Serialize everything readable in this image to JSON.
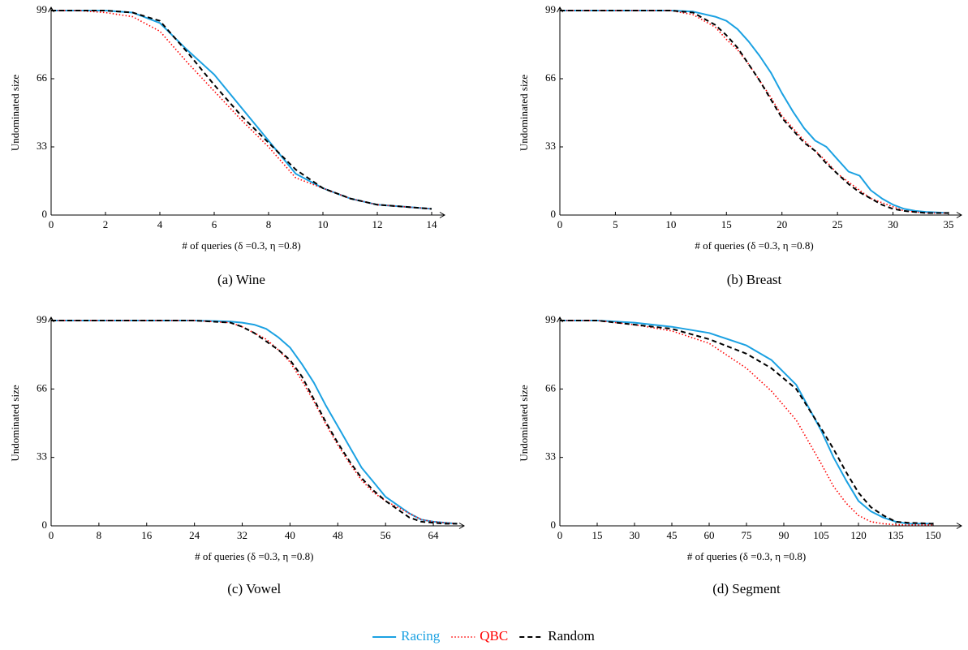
{
  "chart_data": [
    {
      "type": "line",
      "caption": "(a)  Wine",
      "x_label": "# of queries (δ =0.3, η =0.8)",
      "y_label": "Undominated size",
      "xlim": [
        0,
        14
      ],
      "ylim": [
        0,
        99
      ],
      "xticks": [
        0,
        2,
        4,
        6,
        8,
        10,
        12,
        14
      ],
      "yticks": [
        0,
        33,
        66,
        99
      ],
      "x": [
        0,
        1,
        2,
        3,
        4,
        5,
        6,
        7,
        8,
        9,
        10,
        11,
        12,
        13,
        14
      ],
      "series": [
        {
          "values": [
            99,
            99,
            99,
            98,
            93,
            80,
            68,
            52,
            36,
            20,
            13,
            8,
            5,
            4,
            3
          ]
        },
        {
          "values": [
            99,
            99,
            98,
            96,
            89,
            74,
            60,
            46,
            33,
            18,
            13,
            8,
            5,
            4,
            3
          ]
        },
        {
          "values": [
            99,
            99,
            99,
            98,
            94,
            79,
            63,
            48,
            35,
            22,
            13,
            8,
            5,
            4,
            3
          ]
        }
      ]
    },
    {
      "type": "line",
      "caption": "(b)  Breast",
      "x_label": "# of queries (δ =0.3, η =0.8)",
      "y_label": "Undominated size",
      "xlim": [
        0,
        35
      ],
      "ylim": [
        0,
        99
      ],
      "xticks": [
        0,
        5,
        10,
        15,
        20,
        25,
        30,
        35
      ],
      "yticks": [
        0,
        33,
        66,
        99
      ],
      "x": [
        0,
        5,
        10,
        12,
        14,
        15,
        16,
        17,
        18,
        19,
        20,
        21,
        22,
        23,
        24,
        25,
        26,
        27,
        28,
        29,
        30,
        31,
        32,
        33,
        35
      ],
      "series": [
        {
          "values": [
            99,
            99,
            99,
            98.5,
            96,
            94,
            90,
            84,
            77,
            69,
            59,
            50,
            42,
            36,
            33,
            27,
            21,
            19,
            12,
            8,
            5,
            3,
            2,
            1.5,
            1
          ]
        },
        {
          "values": [
            99,
            99,
            99,
            97,
            91,
            85,
            80,
            73,
            65,
            57,
            48,
            42,
            36,
            31,
            26,
            20,
            16,
            12,
            8,
            6,
            4,
            2,
            1.5,
            1,
            1
          ]
        },
        {
          "values": [
            99,
            99,
            99,
            98,
            92,
            87,
            81,
            73,
            65,
            56,
            47,
            41,
            35,
            31,
            25,
            20,
            15,
            11,
            8,
            5,
            3,
            2,
            1.5,
            1,
            1
          ]
        }
      ]
    },
    {
      "type": "line",
      "caption": "(c)  Vowel",
      "x_label": "# of queries (δ =0.3, η =0.8)",
      "y_label": "Undominated size",
      "xlim": [
        0,
        68
      ],
      "ylim": [
        0,
        99
      ],
      "xticks": [
        0,
        8,
        16,
        24,
        32,
        40,
        48,
        56,
        64
      ],
      "yticks": [
        0,
        33,
        66,
        99
      ],
      "x": [
        0,
        8,
        16,
        24,
        30,
        32,
        34,
        36,
        38,
        40,
        42,
        44,
        46,
        48,
        50,
        52,
        54,
        56,
        58,
        60,
        62,
        64,
        66,
        68
      ],
      "series": [
        {
          "values": [
            99,
            99,
            99,
            99,
            98.5,
            98,
            97,
            95,
            91,
            86,
            78,
            69,
            58,
            48,
            38,
            28,
            21,
            14,
            10,
            6,
            3,
            2,
            1.5,
            1
          ]
        },
        {
          "values": [
            99,
            99,
            99,
            99,
            98,
            96,
            93,
            90,
            85,
            79,
            70,
            60,
            49,
            39,
            30,
            22,
            16,
            12,
            9,
            6,
            3,
            2,
            1.5,
            1
          ]
        },
        {
          "values": [
            99,
            99,
            99,
            99,
            98,
            96,
            93,
            89,
            85,
            80,
            72,
            61,
            50,
            40,
            31,
            23,
            17,
            12,
            8,
            4,
            2,
            1.5,
            1,
            1
          ]
        }
      ]
    },
    {
      "type": "line",
      "caption": "(d)  Segment",
      "x_label": "# of queries (δ =0.3, η =0.8)",
      "y_label": "Undominated size",
      "xlim": [
        0,
        150
      ],
      "ylim": [
        0,
        99
      ],
      "xticks": [
        0,
        15,
        30,
        45,
        60,
        75,
        90,
        105,
        120,
        135,
        150
      ],
      "yticks": [
        0,
        33,
        66,
        99
      ],
      "x": [
        0,
        15,
        30,
        45,
        60,
        75,
        85,
        95,
        105,
        110,
        115,
        120,
        125,
        130,
        135,
        140,
        150
      ],
      "series": [
        {
          "values": [
            99,
            99,
            98,
            96,
            93,
            87,
            80,
            68,
            46,
            33,
            22,
            12,
            7,
            4,
            2,
            1,
            1
          ]
        },
        {
          "values": [
            99,
            99,
            97,
            94,
            88,
            76,
            65,
            51,
            30,
            19,
            11,
            5,
            2,
            1,
            0.5,
            0.5,
            0.5
          ]
        },
        {
          "values": [
            99,
            99,
            97,
            95,
            90,
            83,
            76,
            66,
            47,
            37,
            26,
            16,
            9,
            5,
            2,
            1.5,
            1
          ]
        }
      ]
    }
  ],
  "legend": [
    {
      "name": "Racing",
      "color": "#1ba1e2",
      "dash": "solid"
    },
    {
      "name": "QBC",
      "color": "#ff0000",
      "dash": "dotted"
    },
    {
      "name": "Random",
      "color": "#000000",
      "dash": "dashed"
    }
  ]
}
